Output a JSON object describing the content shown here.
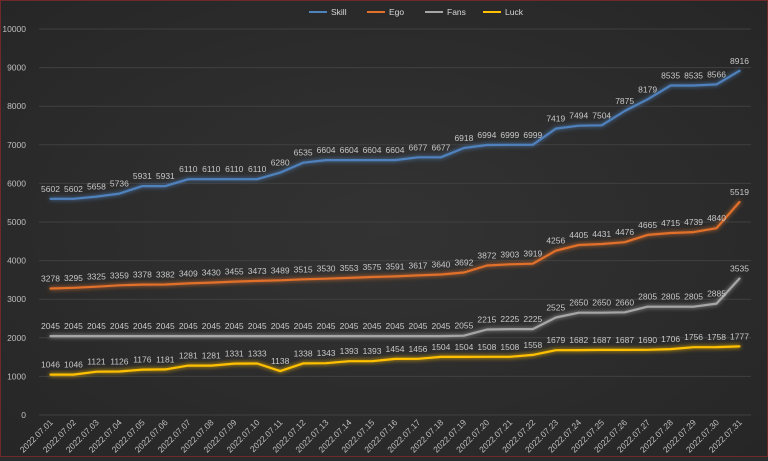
{
  "chart_data": {
    "type": "line",
    "title": "",
    "xlabel": "",
    "ylabel": "",
    "ylim": [
      0,
      10000
    ],
    "yticks": [
      0,
      1000,
      2000,
      3000,
      4000,
      5000,
      6000,
      7000,
      8000,
      9000,
      10000
    ],
    "grid": true,
    "legend_position": "top",
    "categories": [
      "2022.07.01",
      "2022.07.02",
      "2022.07.03",
      "2022.07.04",
      "2022.07.05",
      "2022.07.06",
      "2022.07.07",
      "2022.07.08",
      "2022.07.09",
      "2022.07.10",
      "2022.07.11",
      "2022.07.12",
      "2022.07.13",
      "2022.07.14",
      "2022.07.15",
      "2022.07.16",
      "2022.07.17",
      "2022.07.18",
      "2022.07.19",
      "2022.07.20",
      "2022.07.21",
      "2022.07.22",
      "2022.07.23",
      "2022.07.24",
      "2022.07.25",
      "2022.07.26",
      "2022.07.27",
      "2022.07.28",
      "2022.07.29",
      "2022.07.30",
      "2022.07.31"
    ],
    "series": [
      {
        "name": "Skill",
        "color": "#4f81bd",
        "values": [
          5602,
          5602,
          5658,
          5736,
          5931,
          5931,
          6110,
          6110,
          6110,
          6110,
          6280,
          6535,
          6604,
          6604,
          6604,
          6604,
          6677,
          6677,
          6918,
          6994,
          6999,
          6999,
          7419,
          7494,
          7504,
          7875,
          8179,
          8535,
          8535,
          8566,
          8916
        ]
      },
      {
        "name": "Ego",
        "color": "#e0702a",
        "values": [
          3278,
          3295,
          3325,
          3359,
          3378,
          3382,
          3409,
          3430,
          3455,
          3473,
          3489,
          3515,
          3530,
          3553,
          3575,
          3591,
          3617,
          3640,
          3692,
          3872,
          3903,
          3919,
          4256,
          4405,
          4431,
          4476,
          4665,
          4715,
          4739,
          4840,
          5519
        ]
      },
      {
        "name": "Fans",
        "color": "#a6a6a6",
        "values": [
          2045,
          2045,
          2045,
          2045,
          2045,
          2045,
          2045,
          2045,
          2045,
          2045,
          2045,
          2045,
          2045,
          2045,
          2045,
          2045,
          2045,
          2045,
          2055,
          2215,
          2225,
          2225,
          2525,
          2650,
          2650,
          2660,
          2805,
          2805,
          2805,
          2885,
          3535
        ]
      },
      {
        "name": "Luck",
        "color": "#ffc000",
        "values": [
          1046,
          1046,
          1121,
          1126,
          1176,
          1181,
          1281,
          1281,
          1331,
          1333,
          1138,
          1338,
          1343,
          1393,
          1393,
          1454,
          1456,
          1504,
          1504,
          1508,
          1508,
          1558,
          1679,
          1682,
          1687,
          1687,
          1690,
          1706,
          1756,
          1758,
          1777
        ]
      }
    ]
  }
}
